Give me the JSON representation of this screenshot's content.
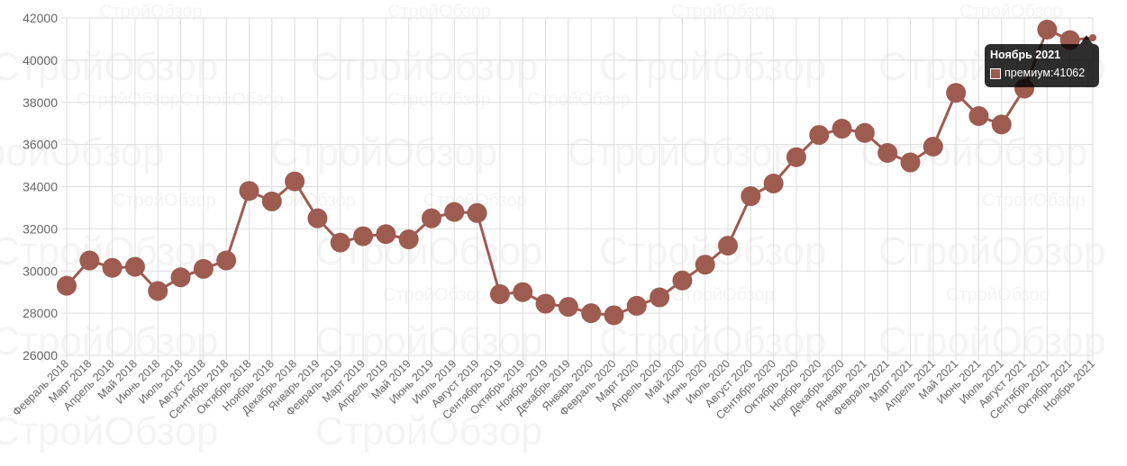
{
  "chart_data": {
    "type": "line",
    "categories": [
      "Февраль 2018",
      "Март 2018",
      "Апрель 2018",
      "Май 2018",
      "Июнь 2018",
      "Июль 2018",
      "Август 2018",
      "Сентябрь 2018",
      "Октябрь 2018",
      "Ноябрь 2018",
      "Декабрь 2018",
      "Январь 2019",
      "Февраль 2019",
      "Март 2019",
      "Апрель 2019",
      "Май 2019",
      "Июнь 2019",
      "Июль 2019",
      "Август 2019",
      "Сентябрь 2019",
      "Октябрь 2019",
      "Ноябрь 2019",
      "Декабрь 2019",
      "Январь 2020",
      "Февраль 2020",
      "Март 2020",
      "Апрель 2020",
      "Май 2020",
      "Июнь 2020",
      "Июль 2020",
      "Август 2020",
      "Сентябрь 2020",
      "Октябрь 2020",
      "Ноябрь 2020",
      "Декабрь 2020",
      "Январь 2021",
      "Февраль 2021",
      "Март 2021",
      "Апрель 2021",
      "Май 2021",
      "Июнь 2021",
      "Июль 2021",
      "Август 2021",
      "Сентябрь 2021",
      "Октябрь 2021",
      "Ноябрь 2021"
    ],
    "series": [
      {
        "name": "премиум",
        "color": "#9e5b50",
        "values": [
          29300,
          30500,
          30150,
          30200,
          29050,
          29700,
          30100,
          30500,
          33800,
          33300,
          34250,
          32500,
          31350,
          31650,
          31750,
          31500,
          32500,
          32800,
          32750,
          28900,
          29000,
          28450,
          28300,
          28000,
          27900,
          28350,
          28750,
          29550,
          30300,
          31200,
          33550,
          34150,
          35400,
          36450,
          36750,
          36550,
          35600,
          35150,
          35900,
          38450,
          37350,
          36950,
          38650,
          41450,
          40950,
          41062
        ]
      }
    ],
    "ylim": [
      26000,
      42000
    ],
    "yticks": [
      26000,
      28000,
      30000,
      32000,
      34000,
      36000,
      38000,
      40000,
      42000
    ],
    "grid": true,
    "legend": "none"
  },
  "tooltip": {
    "title": "Ноябрь 2021",
    "series_label": "премиум",
    "value": "41062",
    "separator": ": "
  },
  "watermark": {
    "text": "СтройОбзор"
  }
}
